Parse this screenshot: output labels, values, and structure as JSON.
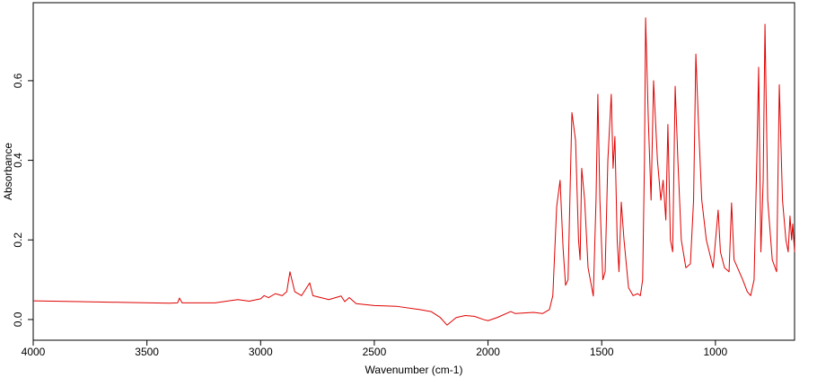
{
  "chart_data": {
    "type": "line",
    "x_label": "Wavenumber (cm-1)",
    "y_label": "Absorbance",
    "x": [
      4000,
      3800,
      3600,
      3400,
      3365,
      3357,
      3345,
      3200,
      3100,
      3050,
      3000,
      2985,
      2965,
      2935,
      2905,
      2885,
      2871,
      2850,
      2820,
      2784,
      2770,
      2700,
      2646,
      2630,
      2610,
      2580,
      2500,
      2400,
      2300,
      2250,
      2210,
      2180,
      2140,
      2100,
      2060,
      2020,
      2000,
      1960,
      1900,
      1880,
      1800,
      1760,
      1730,
      1715,
      1698,
      1683,
      1670,
      1659,
      1648,
      1638,
      1631,
      1615,
      1602,
      1595,
      1588,
      1575,
      1560,
      1537,
      1525,
      1517,
      1508,
      1495,
      1485,
      1473,
      1458,
      1450,
      1442,
      1432,
      1424,
      1414,
      1402,
      1382,
      1362,
      1342,
      1330,
      1320,
      1312,
      1307,
      1295,
      1283,
      1272,
      1255,
      1240,
      1230,
      1218,
      1209,
      1198,
      1188,
      1177,
      1165,
      1150,
      1130,
      1110,
      1096,
      1086,
      1075,
      1060,
      1040,
      1010,
      988,
      978,
      960,
      940,
      929,
      918,
      880,
      860,
      845,
      830,
      818,
      810,
      800,
      790,
      782,
      770,
      750,
      731,
      719,
      705,
      690,
      680,
      672,
      665,
      660,
      652
    ],
    "values": [
      0.047,
      0.045,
      0.043,
      0.041,
      0.042,
      0.054,
      0.042,
      0.042,
      0.05,
      0.046,
      0.052,
      0.06,
      0.055,
      0.065,
      0.06,
      0.07,
      0.12,
      0.07,
      0.06,
      0.092,
      0.06,
      0.05,
      0.059,
      0.045,
      0.055,
      0.04,
      0.035,
      0.033,
      0.025,
      0.02,
      0.005,
      -0.014,
      0.005,
      0.01,
      0.008,
      0.0,
      -0.003,
      0.005,
      0.02,
      0.015,
      0.018,
      0.015,
      0.025,
      0.06,
      0.284,
      0.35,
      0.18,
      0.086,
      0.1,
      0.35,
      0.52,
      0.45,
      0.2,
      0.15,
      0.38,
      0.3,
      0.13,
      0.059,
      0.3,
      0.566,
      0.3,
      0.1,
      0.12,
      0.4,
      0.566,
      0.38,
      0.46,
      0.2,
      0.12,
      0.295,
      0.2,
      0.08,
      0.06,
      0.065,
      0.06,
      0.1,
      0.4,
      0.758,
      0.5,
      0.3,
      0.6,
      0.4,
      0.3,
      0.35,
      0.25,
      0.49,
      0.2,
      0.17,
      0.586,
      0.4,
      0.2,
      0.13,
      0.14,
      0.3,
      0.667,
      0.5,
      0.3,
      0.2,
      0.13,
      0.275,
      0.17,
      0.13,
      0.12,
      0.293,
      0.15,
      0.1,
      0.07,
      0.06,
      0.1,
      0.4,
      0.634,
      0.17,
      0.35,
      0.742,
      0.3,
      0.15,
      0.12,
      0.59,
      0.3,
      0.2,
      0.17,
      0.26,
      0.2,
      0.24,
      0.17
    ],
    "color": "#e00000",
    "xlim": [
      4000,
      652
    ],
    "xticks": [
      4000,
      3500,
      3000,
      2500,
      2000,
      1500,
      1000
    ],
    "ylim": [
      -0.052,
      0.796
    ],
    "yticks": [
      {
        "value": 0,
        "label": "0.0"
      },
      0.2,
      0.4,
      0.6
    ]
  }
}
